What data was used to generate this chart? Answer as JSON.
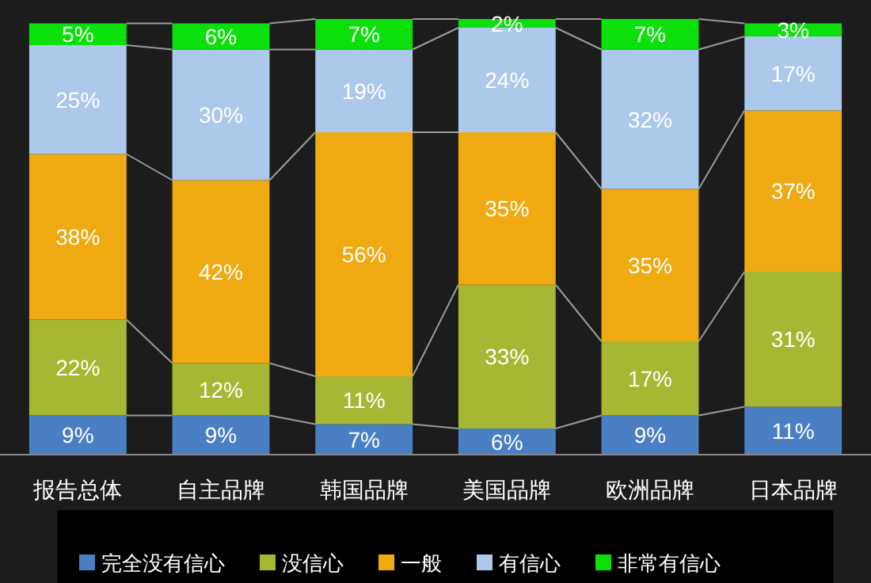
{
  "chart_data": {
    "type": "bar",
    "stacked": true,
    "legend": "bottom",
    "categories": [
      "报告总体",
      "自主品牌",
      "韩国品牌",
      "美国品牌",
      "欧洲品牌",
      "日本品牌"
    ],
    "series": [
      {
        "name": "完全没有信心",
        "color": "#4a7fc4",
        "values": [
          9,
          9,
          7,
          6,
          9,
          11
        ],
        "value_labels": [
          "9%",
          "9%",
          "7%",
          "6%",
          "9%",
          "11%"
        ]
      },
      {
        "name": "没信心",
        "color": "#a8b733",
        "values": [
          22,
          12,
          11,
          33,
          17,
          31
        ],
        "value_labels": [
          "22%",
          "12%",
          "11%",
          "33%",
          "17%",
          "31%"
        ]
      },
      {
        "name": "一般",
        "color": "#eeaa10",
        "values": [
          38,
          42,
          56,
          35,
          35,
          37
        ],
        "value_labels": [
          "38%",
          "42%",
          "56%",
          "35%",
          "35%",
          "37%"
        ]
      },
      {
        "name": "有信心",
        "color": "#acc8ea",
        "values": [
          25,
          30,
          19,
          24,
          32,
          17
        ],
        "value_labels": [
          "25%",
          "30%",
          "19%",
          "24%",
          "32%",
          "17%"
        ]
      },
      {
        "name": "非常有信心",
        "color": "#0ce00c",
        "values": [
          5,
          6,
          7,
          2,
          7,
          3
        ],
        "value_labels": [
          "5%",
          "6%",
          "7%",
          "2%",
          "7%",
          "3%"
        ]
      }
    ]
  }
}
